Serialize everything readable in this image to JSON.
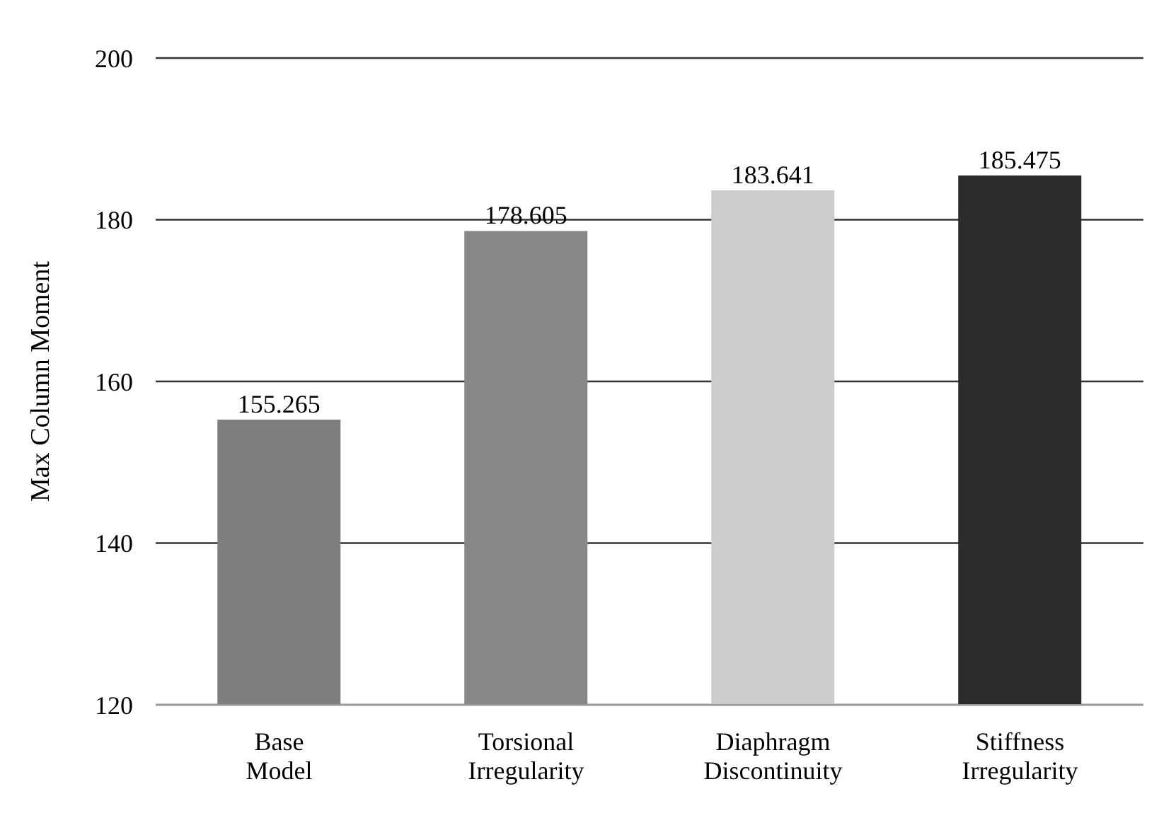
{
  "chart_data": {
    "type": "bar",
    "ylabel": "Max Column Moment",
    "categories": [
      "Base Model",
      "Torsional Irregularity",
      "Diaphragm Discontinuity",
      "Stiffness Irregularity"
    ],
    "values": [
      155.265,
      178.605,
      183.641,
      185.475
    ],
    "colors": [
      "#7f7f7f",
      "#878787",
      "#cccccc",
      "#2b2b2b"
    ],
    "ylim": [
      120,
      200
    ],
    "yticks": [
      120,
      140,
      160,
      180,
      200
    ],
    "grid": "y",
    "legend": false,
    "data_labels": true
  }
}
